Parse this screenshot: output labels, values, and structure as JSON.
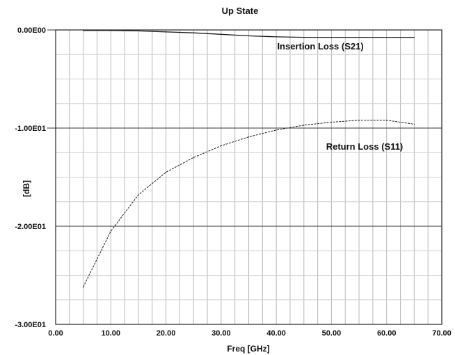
{
  "chart_data": {
    "type": "line",
    "title": "Up State",
    "xlabel": "Freq [GHz]",
    "ylabel": "[dB]",
    "xlim": [
      0,
      70
    ],
    "ylim": [
      -30,
      0
    ],
    "x_ticks": [
      "0.00",
      "10.00",
      "20.00",
      "30.00",
      "40.00",
      "50.00",
      "60.00",
      "70.00"
    ],
    "y_ticks": [
      "0.00E00",
      "-1.00E01",
      "-2.00E01",
      "-3.00E01"
    ],
    "x_minor_grid_step": 2.5,
    "y_minor_grid_step": 2.5,
    "grid": true,
    "series": [
      {
        "name": "Insertion Loss (S21)",
        "style": "solid",
        "x": [
          5,
          10,
          15,
          20,
          25,
          30,
          35,
          40,
          45,
          50,
          55,
          60,
          65
        ],
        "y": [
          -0.05,
          -0.05,
          -0.1,
          -0.2,
          -0.3,
          -0.45,
          -0.6,
          -0.7,
          -0.75,
          -0.75,
          -0.75,
          -0.75,
          -0.75
        ]
      },
      {
        "name": "Return Loss (S11)",
        "style": "dashed",
        "x": [
          5,
          10,
          15,
          20,
          25,
          30,
          35,
          40,
          45,
          50,
          55,
          60,
          65
        ],
        "y": [
          -26.2,
          -20.5,
          -16.8,
          -14.5,
          -13.0,
          -11.8,
          -10.9,
          -10.2,
          -9.7,
          -9.4,
          -9.2,
          -9.2,
          -9.6
        ]
      }
    ],
    "annotations": [
      {
        "text": "Insertion Loss (S21)",
        "x": 48,
        "y": -2.0
      },
      {
        "text": "Return Loss (S11)",
        "x": 56,
        "y": -12.2
      }
    ]
  },
  "colors": {
    "line": "#1a1a1a",
    "grid": "#b8b8b8"
  }
}
